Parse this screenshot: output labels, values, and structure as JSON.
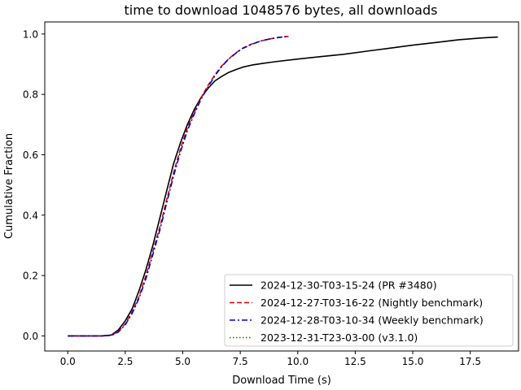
{
  "chart_data": {
    "type": "line",
    "title": "time to download 1048576 bytes, all downloads",
    "xlabel": "Download Time (s)",
    "ylabel": "Cumulative Fraction",
    "xlim": [
      -1.0,
      19.6
    ],
    "ylim": [
      -0.05,
      1.04
    ],
    "xticks": [
      0.0,
      2.5,
      5.0,
      7.5,
      10.0,
      12.5,
      15.0,
      17.5
    ],
    "xtick_labels": [
      "0.0",
      "2.5",
      "5.0",
      "7.5",
      "10.0",
      "12.5",
      "15.0",
      "17.5"
    ],
    "yticks": [
      0.0,
      0.2,
      0.4,
      0.6,
      0.8,
      1.0
    ],
    "ytick_labels": [
      "0.0",
      "0.2",
      "0.4",
      "0.6",
      "0.8",
      "1.0"
    ],
    "grid": false,
    "legend_position": "lower-right",
    "series": [
      {
        "name": "2024-12-30-T03-15-24 (PR #3480)",
        "color": "#000000",
        "style": "solid",
        "x": [
          0.0,
          1.5,
          1.9,
          2.2,
          2.5,
          2.8,
          3.1,
          3.4,
          3.7,
          4.0,
          4.3,
          4.6,
          4.9,
          5.2,
          5.5,
          5.8,
          6.1,
          6.4,
          6.7,
          7.0,
          7.3,
          7.6,
          8.0,
          8.5,
          9.0,
          10.0,
          11.0,
          12.0,
          13.0,
          14.0,
          15.0,
          16.0,
          17.0,
          18.0,
          18.7
        ],
        "y": [
          0.0,
          0.0,
          0.003,
          0.02,
          0.05,
          0.09,
          0.15,
          0.22,
          0.3,
          0.39,
          0.48,
          0.57,
          0.64,
          0.7,
          0.75,
          0.79,
          0.82,
          0.845,
          0.86,
          0.873,
          0.882,
          0.89,
          0.897,
          0.903,
          0.908,
          0.917,
          0.925,
          0.933,
          0.943,
          0.953,
          0.963,
          0.972,
          0.981,
          0.987,
          0.99
        ]
      },
      {
        "name": "2024-12-27-T03-16-22 (Nightly benchmark)",
        "color": "#dd0000",
        "style": "dashed",
        "x": [
          0.0,
          1.5,
          1.9,
          2.2,
          2.5,
          2.8,
          3.1,
          3.4,
          3.7,
          4.0,
          4.3,
          4.6,
          4.9,
          5.2,
          5.5,
          5.8,
          6.1,
          6.4,
          6.7,
          7.0,
          7.3,
          7.6,
          8.0,
          8.4,
          8.8,
          9.2,
          9.6
        ],
        "y": [
          0.0,
          0.0,
          0.002,
          0.015,
          0.04,
          0.08,
          0.13,
          0.2,
          0.28,
          0.36,
          0.45,
          0.54,
          0.62,
          0.69,
          0.74,
          0.79,
          0.83,
          0.865,
          0.895,
          0.918,
          0.937,
          0.953,
          0.967,
          0.977,
          0.984,
          0.989,
          0.992
        ]
      },
      {
        "name": "2024-12-28-T03-10-34 (Weekly benchmark)",
        "color": "#0000cc",
        "style": "dashdot",
        "x": [
          0.0,
          1.5,
          1.9,
          2.2,
          2.5,
          2.8,
          3.1,
          3.4,
          3.7,
          4.0,
          4.3,
          4.6,
          4.9,
          5.2,
          5.5,
          5.8,
          6.1,
          6.4,
          6.7,
          7.0,
          7.3,
          7.6,
          8.0,
          8.4,
          8.8,
          9.2,
          9.6
        ],
        "y": [
          0.0,
          0.0,
          0.002,
          0.013,
          0.037,
          0.075,
          0.125,
          0.19,
          0.27,
          0.35,
          0.44,
          0.53,
          0.61,
          0.68,
          0.735,
          0.785,
          0.825,
          0.862,
          0.893,
          0.917,
          0.936,
          0.952,
          0.966,
          0.977,
          0.984,
          0.989,
          0.992
        ]
      },
      {
        "name": "2023-12-31-T23-03-00 (v3.1.0)",
        "color": "#008000",
        "style": "dotted",
        "x": [],
        "y": []
      }
    ]
  }
}
